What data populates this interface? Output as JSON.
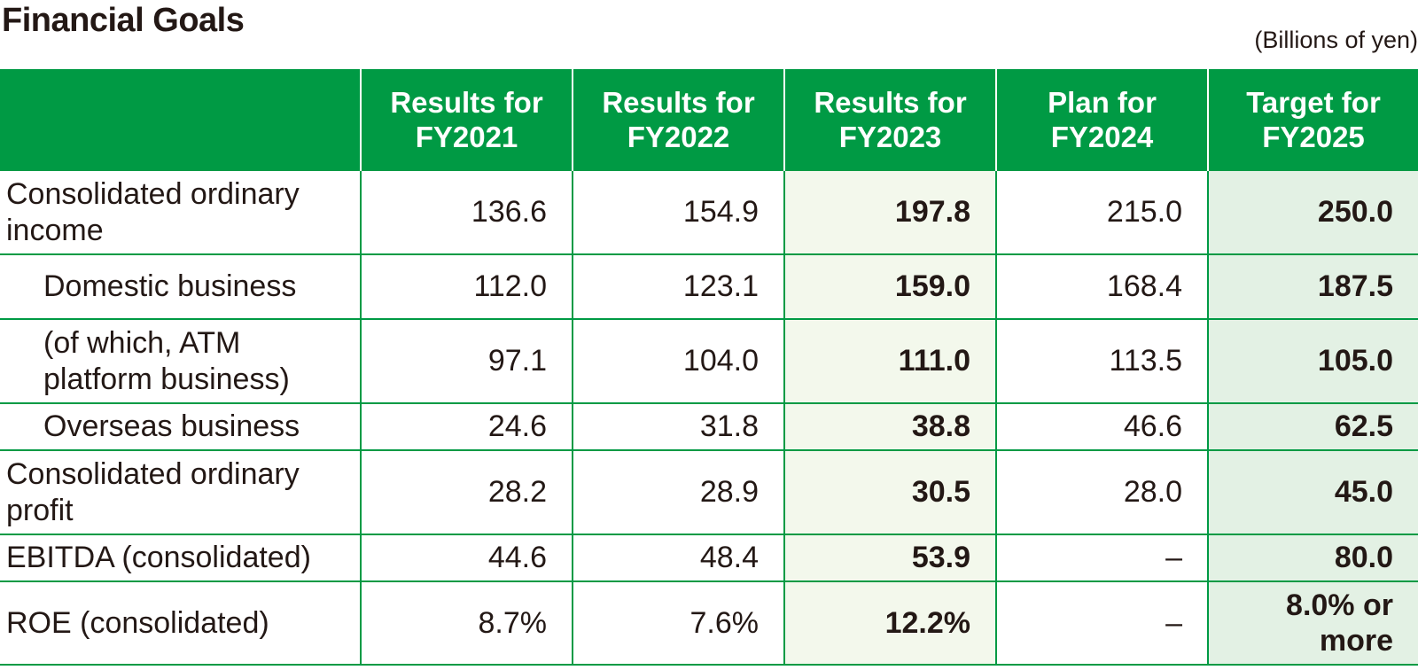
{
  "title": "Financial Goals",
  "unit": "(Billions of yen)",
  "colors": {
    "header_green": "#009a44",
    "border_green": "#009a44",
    "highlight_fy2023": "#f3f8ec",
    "highlight_fy2025": "#e3f1e4",
    "text": "#231815"
  },
  "columns": [
    {
      "line1": "Results for",
      "line2": "FY2021"
    },
    {
      "line1": "Results for",
      "line2": "FY2022"
    },
    {
      "line1": "Results for",
      "line2": "FY2023"
    },
    {
      "line1": "Plan for",
      "line2": "FY2024"
    },
    {
      "line1": "Target for",
      "line2": "FY2025"
    }
  ],
  "rows": [
    {
      "label": "Consolidated ordinary income",
      "values": [
        "136.6",
        "154.9",
        "197.8",
        "215.0",
        "250.0"
      ]
    },
    {
      "label": "Domestic business",
      "values": [
        "112.0",
        "123.1",
        "159.0",
        "168.4",
        "187.5"
      ]
    },
    {
      "label": "(of which, ATM platform business)",
      "values": [
        "97.1",
        "104.0",
        "111.0",
        "113.5",
        "105.0"
      ]
    },
    {
      "label": "Overseas business",
      "values": [
        "24.6",
        "31.8",
        "38.8",
        "46.6",
        "62.5"
      ]
    },
    {
      "label": "Consolidated ordinary profit",
      "values": [
        "28.2",
        "28.9",
        "30.5",
        "28.0",
        "45.0"
      ]
    },
    {
      "label": "EBITDA (consolidated)",
      "values": [
        "44.6",
        "48.4",
        "53.9",
        "–",
        "80.0"
      ]
    },
    {
      "label": "ROE (consolidated)",
      "values": [
        "8.7%",
        "7.6%",
        "12.2%",
        "–"
      ],
      "target_line1": "8.0% or",
      "target_line2": "more"
    }
  ]
}
